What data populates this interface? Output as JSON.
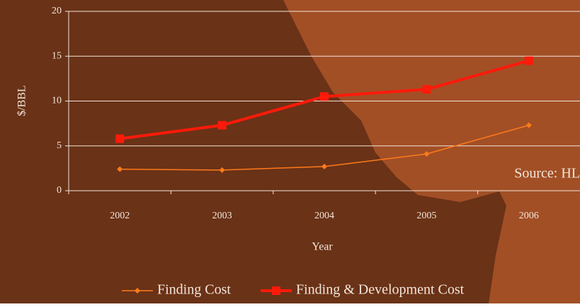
{
  "chart_data": {
    "type": "line",
    "x_label": "Year",
    "y_label": "$/BBL",
    "annotation": "Source: HL",
    "categories": [
      "2002",
      "2003",
      "2004",
      "2005",
      "2006"
    ],
    "series": [
      {
        "name": "Finding Cost",
        "color": "#ff7a1a",
        "values": [
          2.4,
          2.3,
          2.7,
          4.1,
          7.3
        ]
      },
      {
        "name": "Finding & Development Cost",
        "color": "#ff1a0a",
        "values": [
          5.8,
          7.3,
          10.5,
          11.3,
          14.5
        ]
      }
    ],
    "ylim": [
      0,
      20
    ],
    "yticks": [
      0,
      5,
      10,
      15,
      20
    ],
    "grid": true,
    "legend": "bottom"
  }
}
